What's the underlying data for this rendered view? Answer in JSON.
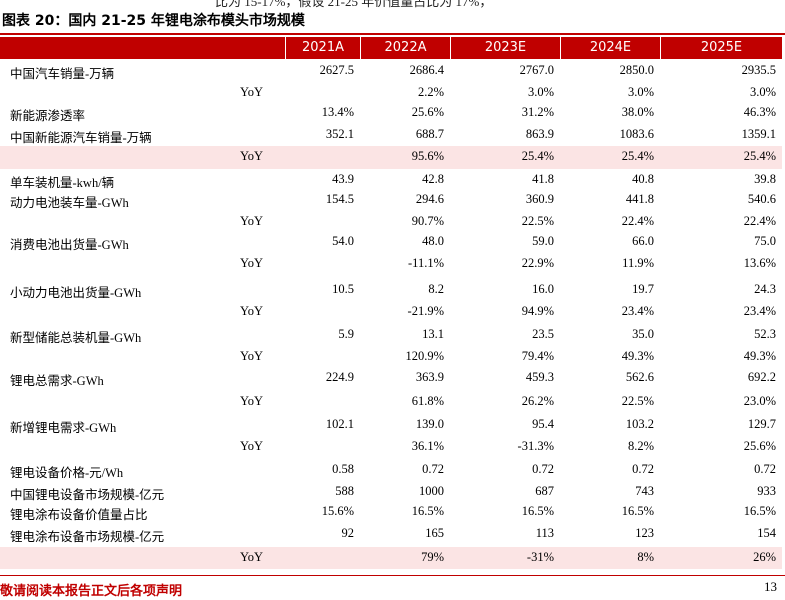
{
  "header": {
    "top_text": "比为 15-17%，假设 21-25 年价值量占比为 17%，",
    "title": "图表 20：国内 21-25 年锂电涂布模头市场规模"
  },
  "table": {
    "columns": [
      "2021A",
      "2022A",
      "2023E",
      "2024E",
      "2025E"
    ],
    "rows": [
      [
        "中国汽车销量-万辆",
        "2627.5",
        "2686.4",
        "2767.0",
        "2850.0",
        "2935.5"
      ],
      [
        "YoY",
        "",
        "2.2%",
        "3.0%",
        "3.0%",
        "3.0%"
      ],
      [
        "新能源渗透率",
        "13.4%",
        "25.6%",
        "31.2%",
        "38.0%",
        "46.3%"
      ],
      [
        "中国新能源汽车销量-万辆",
        "352.1",
        "688.7",
        "863.9",
        "1083.6",
        "1359.1"
      ],
      [
        "YoY",
        "",
        "95.6%",
        "25.4%",
        "25.4%",
        "25.4%"
      ],
      [
        "单车装机量-kwh/辆",
        "43.9",
        "42.8",
        "41.8",
        "40.8",
        "39.8"
      ],
      [
        "动力电池装车量-GWh",
        "154.5",
        "294.6",
        "360.9",
        "441.8",
        "540.6"
      ],
      [
        "YoY",
        "",
        "90.7%",
        "22.5%",
        "22.4%",
        "22.4%"
      ],
      [
        "消费电池出货量-GWh",
        "54.0",
        "48.0",
        "59.0",
        "66.0",
        "75.0"
      ],
      [
        "YoY",
        "",
        "-11.1%",
        "22.9%",
        "11.9%",
        "13.6%"
      ],
      [
        "小动力电池出货量-GWh",
        "10.5",
        "8.2",
        "16.0",
        "19.7",
        "24.3"
      ],
      [
        "YoY",
        "",
        "-21.9%",
        "94.9%",
        "23.4%",
        "23.4%"
      ],
      [
        "新型储能总装机量-GWh",
        "5.9",
        "13.1",
        "23.5",
        "35.0",
        "52.3"
      ],
      [
        "YoY",
        "",
        "120.9%",
        "79.4%",
        "49.3%",
        "49.3%"
      ],
      [
        "锂电总需求-GWh",
        "224.9",
        "363.9",
        "459.3",
        "562.6",
        "692.2"
      ],
      [
        "YoY",
        "",
        "61.8%",
        "26.2%",
        "22.5%",
        "23.0%"
      ],
      [
        "新增锂电需求-GWh",
        "102.1",
        "139.0",
        "95.4",
        "103.2",
        "129.7"
      ],
      [
        "YoY",
        "",
        "36.1%",
        "-31.3%",
        "8.2%",
        "25.6%"
      ],
      [
        "锂电设备价格-元/Wh",
        "0.58",
        "0.72",
        "0.72",
        "0.72",
        "0.72"
      ],
      [
        "中国锂电设备市场规模-亿元",
        "588",
        "1000",
        "687",
        "743",
        "933"
      ],
      [
        "锂电涂布设备价值量占比",
        "15.6%",
        "16.5%",
        "16.5%",
        "16.5%",
        "16.5%"
      ],
      [
        "锂电涂布设备市场规模-亿元",
        "92",
        "165",
        "113",
        "123",
        "154"
      ],
      [
        "YoY",
        "",
        "79%",
        "-31%",
        "8%",
        "26%"
      ]
    ]
  },
  "footer": {
    "disclaimer": "敬请阅读本报告正文后各项声明",
    "page": "13"
  }
}
